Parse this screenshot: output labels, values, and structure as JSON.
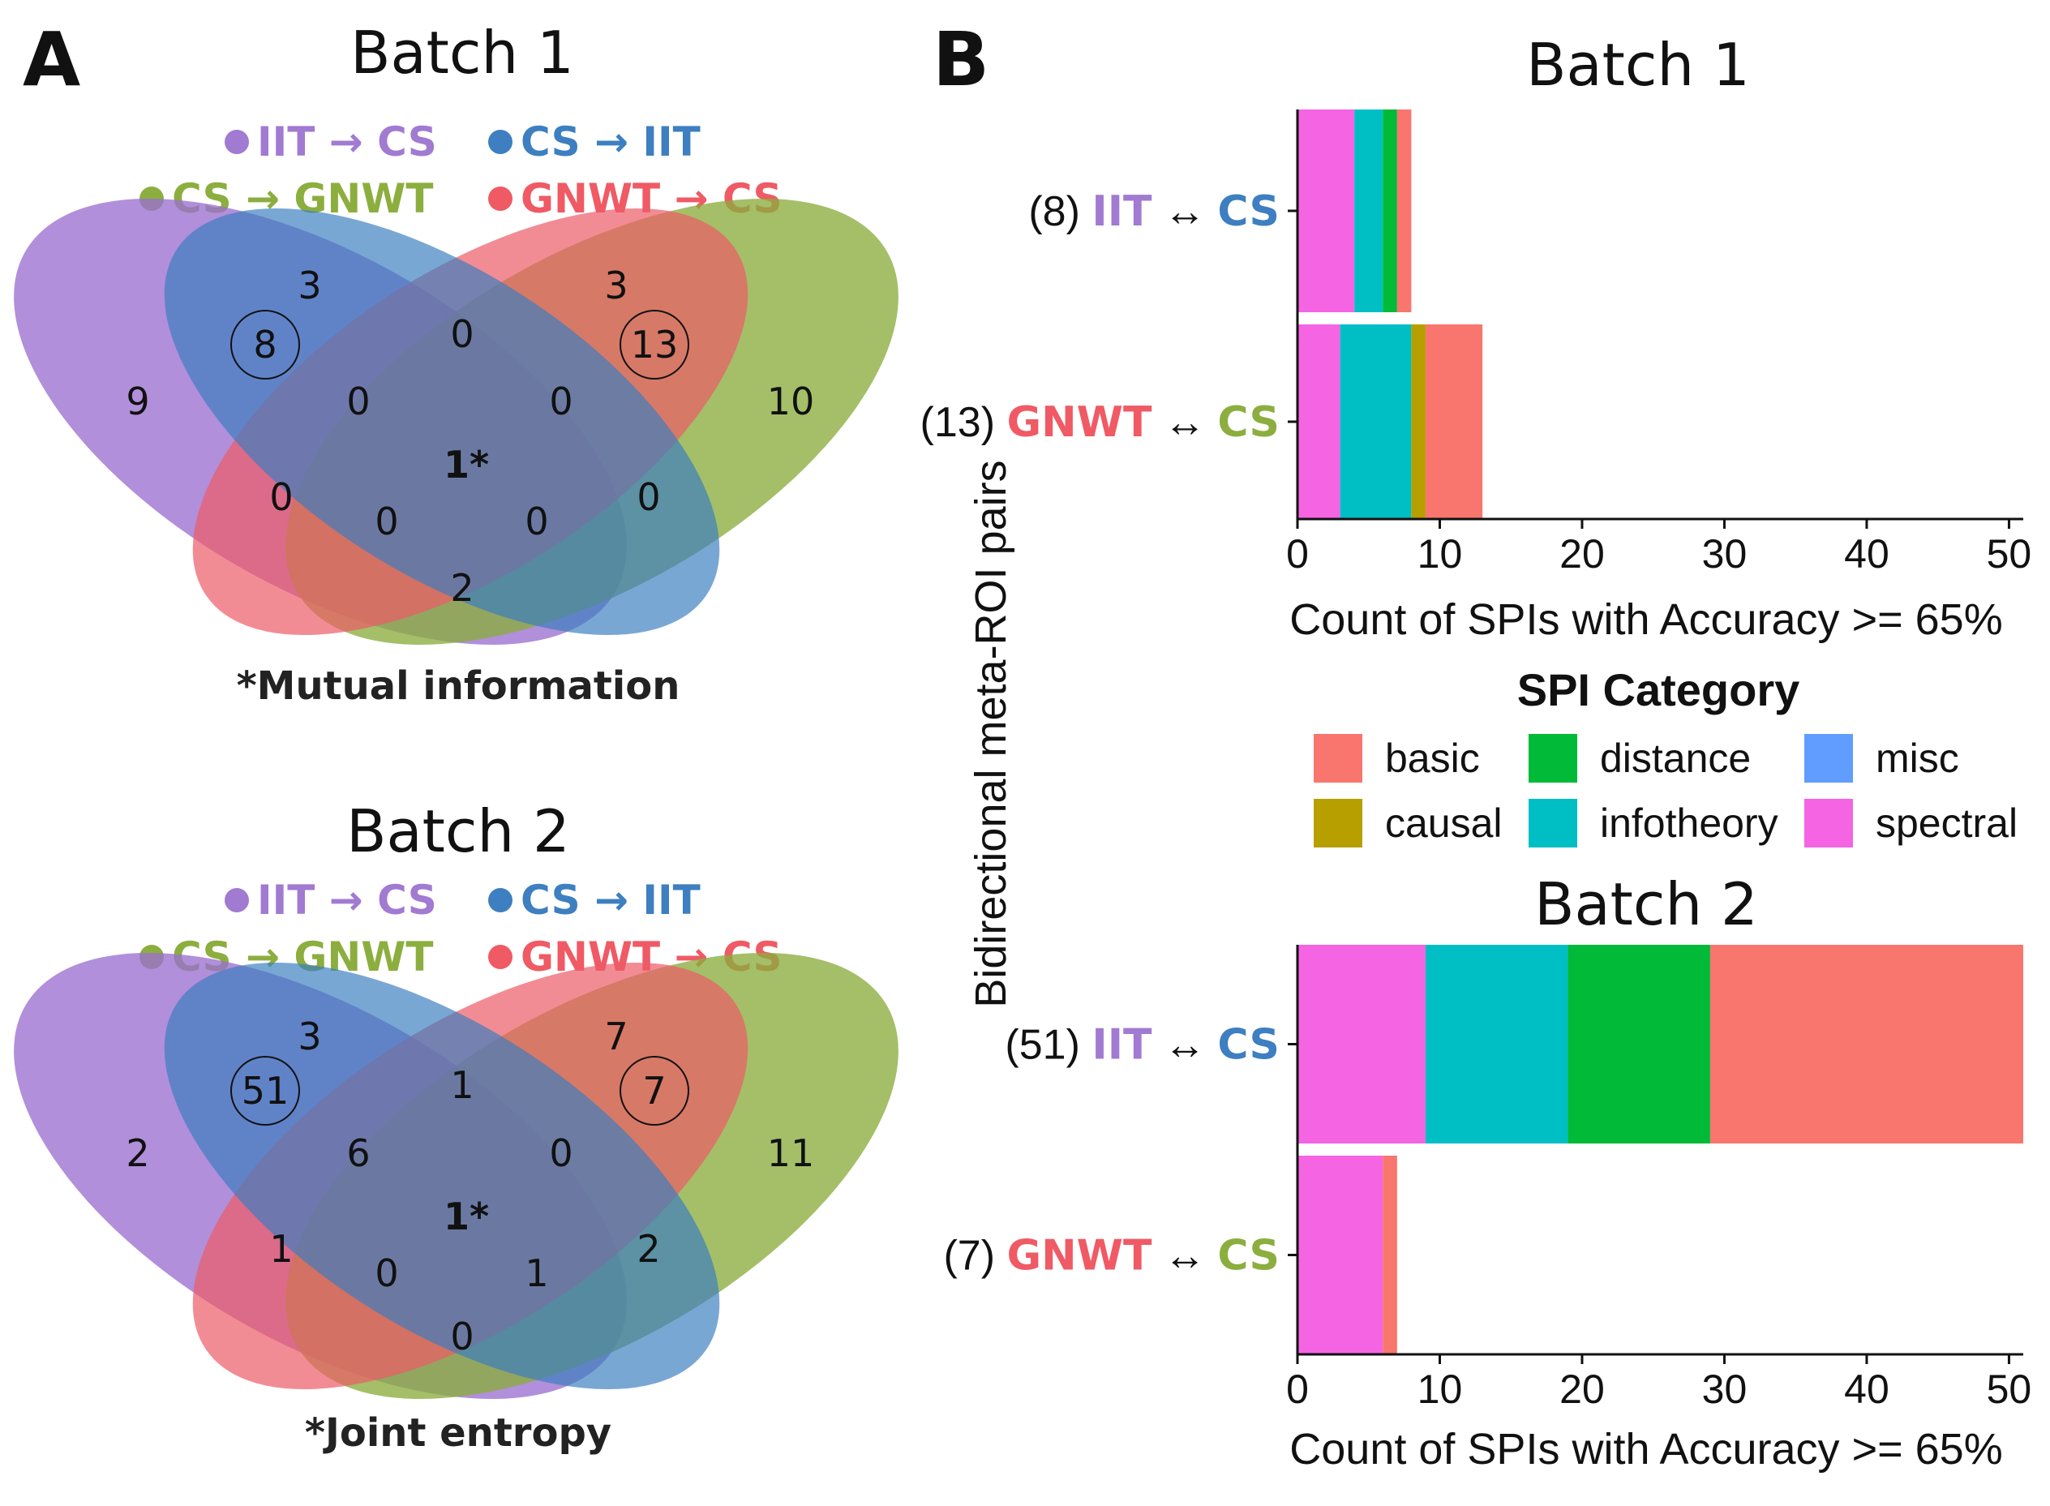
{
  "panel_labels": {
    "a": "A",
    "b": "B"
  },
  "colors": {
    "iit": "#9b6fcf",
    "cs_blue": "#3a7ebf",
    "cs_green": "#8aad3d",
    "gnwt": "#ec5b67"
  },
  "venn": [
    {
      "title": "Batch 1",
      "legend": [
        {
          "from": "IIT",
          "to": "CS",
          "arrow": "→",
          "color": "#a17ad1"
        },
        {
          "from": "CS",
          "to": "IIT",
          "arrow": "→",
          "color": "#3d7fc0"
        },
        {
          "from": "CS",
          "to": "GNWT",
          "arrow": "→",
          "color": "#8cae3f"
        },
        {
          "from": "GNWT",
          "to": "CS",
          "arrow": "→",
          "color": "#ef5a65"
        }
      ],
      "counts": {
        "iit_only": "9",
        "blue_only": "3",
        "red_only": "3",
        "green_only": "10",
        "iit_blue": "8",
        "red_green": "13",
        "blue_red": "0",
        "iit_blue_red": "0",
        "blue_red_green": "0",
        "iit_red": "0",
        "blue_green": "0",
        "iit_red_green": "0",
        "iit_blue_green": "0",
        "iit_green": "2",
        "all": "1*"
      },
      "footnote": "*Mutual information"
    },
    {
      "title": "Batch 2",
      "legend": [
        {
          "from": "IIT",
          "to": "CS",
          "arrow": "→",
          "color": "#a17ad1"
        },
        {
          "from": "CS",
          "to": "IIT",
          "arrow": "→",
          "color": "#3d7fc0"
        },
        {
          "from": "CS",
          "to": "GNWT",
          "arrow": "→",
          "color": "#8cae3f"
        },
        {
          "from": "GNWT",
          "to": "CS",
          "arrow": "→",
          "color": "#ef5a65"
        }
      ],
      "counts": {
        "iit_only": "2",
        "blue_only": "3",
        "red_only": "7",
        "green_only": "11",
        "iit_blue": "51",
        "red_green": "7",
        "blue_red": "1",
        "iit_blue_red": "6",
        "blue_red_green": "0",
        "iit_red": "1",
        "blue_green": "2",
        "iit_red_green": "0",
        "iit_blue_green": "1",
        "iit_green": "0",
        "all": "1*"
      },
      "footnote": "*Joint entropy"
    }
  ],
  "shared_ylabel": "Bidirectional meta-ROI pairs",
  "legend_title": "SPI Category",
  "category_colors": {
    "basic": "#f8766d",
    "causal": "#b79f00",
    "distance": "#00ba38",
    "infotheory": "#00bfc4",
    "misc": "#619cff",
    "spectral": "#f564e3"
  },
  "legend_items": [
    "basic",
    "distance",
    "misc",
    "causal",
    "infotheory",
    "spectral"
  ],
  "chart_data": [
    {
      "type": "bar",
      "orientation": "horizontal",
      "stacked": true,
      "title": "Batch 1",
      "xlabel": "Count of SPIs with Accuracy >= 65%",
      "xlim": [
        0,
        51
      ],
      "xticks": [
        0,
        10,
        20,
        30,
        40,
        50
      ],
      "categories": [
        {
          "count": "(8)",
          "left": "IIT",
          "left_color": "#a17ad1",
          "arrow": "↔",
          "right": "CS",
          "right_color": "#3d7fc0"
        },
        {
          "count": "(13)",
          "left": "GNWT",
          "left_color": "#ef5a65",
          "arrow": "↔",
          "right": "CS",
          "right_color": "#8cae3f"
        }
      ],
      "series": [
        {
          "name": "spectral",
          "values": [
            4,
            3
          ]
        },
        {
          "name": "infotheory",
          "values": [
            2,
            5
          ]
        },
        {
          "name": "distance",
          "values": [
            1,
            0
          ]
        },
        {
          "name": "causal",
          "values": [
            0,
            1
          ]
        },
        {
          "name": "basic",
          "values": [
            1,
            4
          ]
        }
      ]
    },
    {
      "type": "bar",
      "orientation": "horizontal",
      "stacked": true,
      "title": "Batch 2",
      "xlabel": "Count of SPIs with Accuracy >= 65%",
      "xlim": [
        0,
        51
      ],
      "xticks": [
        0,
        10,
        20,
        30,
        40,
        50
      ],
      "categories": [
        {
          "count": "(51)",
          "left": "IIT",
          "left_color": "#a17ad1",
          "arrow": "↔",
          "right": "CS",
          "right_color": "#3d7fc0"
        },
        {
          "count": "(7)",
          "left": "GNWT",
          "left_color": "#ef5a65",
          "arrow": "↔",
          "right": "CS",
          "right_color": "#8cae3f"
        }
      ],
      "series": [
        {
          "name": "spectral",
          "values": [
            9,
            6
          ]
        },
        {
          "name": "infotheory",
          "values": [
            10,
            0
          ]
        },
        {
          "name": "distance",
          "values": [
            10,
            0
          ]
        },
        {
          "name": "causal",
          "values": [
            0,
            0
          ]
        },
        {
          "name": "basic",
          "values": [
            22,
            1
          ]
        }
      ]
    }
  ]
}
